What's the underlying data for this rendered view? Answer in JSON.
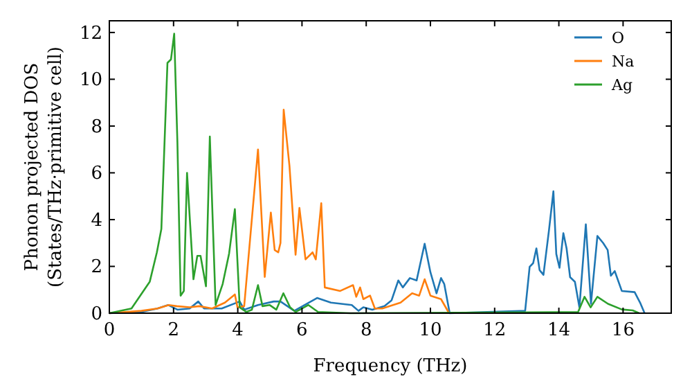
{
  "chart_data": {
    "type": "line",
    "xlabel": "Frequency (THz)",
    "ylabel": "Phonon projected DOS\n(States/THz·primitive cell)",
    "xlim": [
      0,
      17.5
    ],
    "ylim": [
      0,
      12.5
    ],
    "xticks": [
      0,
      2,
      4,
      6,
      8,
      10,
      12,
      14,
      16
    ],
    "yticks": [
      0,
      2,
      4,
      6,
      8,
      10,
      12
    ],
    "grid": false,
    "legend": "top right",
    "line_style": "solid",
    "series": [
      {
        "name": "O",
        "color": "#1f77b4",
        "x": [
          0,
          1,
          1.5,
          1.83,
          2.12,
          2.5,
          2.77,
          2.95,
          3.5,
          4.06,
          4.2,
          4.63,
          5.12,
          5.33,
          5.76,
          6.47,
          6.9,
          7.55,
          7.76,
          7.91,
          8.19,
          8.57,
          8.79,
          9.0,
          9.14,
          9.36,
          9.57,
          9.82,
          10.0,
          10.19,
          10.33,
          10.43,
          10.6,
          12.95,
          13.09,
          13.2,
          13.3,
          13.4,
          13.52,
          13.69,
          13.83,
          13.92,
          14.02,
          14.14,
          14.24,
          14.35,
          14.5,
          14.64,
          14.84,
          15.0,
          15.2,
          15.38,
          15.52,
          15.62,
          15.74,
          15.96,
          16.36,
          16.53,
          16.67
        ],
        "values": [
          0,
          0.05,
          0.2,
          0.35,
          0.15,
          0.2,
          0.5,
          0.2,
          0.2,
          0.5,
          0.15,
          0.35,
          0.5,
          0.5,
          0.1,
          0.65,
          0.45,
          0.35,
          0.1,
          0.25,
          0.15,
          0.3,
          0.55,
          1.4,
          1.1,
          1.5,
          1.4,
          2.97,
          1.75,
          0.85,
          1.5,
          1.25,
          0,
          0.1,
          1.98,
          2.14,
          2.77,
          1.84,
          1.64,
          3.52,
          5.21,
          2.53,
          1.94,
          3.42,
          2.77,
          1.54,
          1.34,
          0.25,
          3.8,
          0.4,
          3.3,
          3.0,
          2.7,
          1.6,
          1.8,
          0.95,
          0.9,
          0.45,
          0
        ]
      },
      {
        "name": "Na",
        "color": "#ff7f0e",
        "x": [
          0,
          1,
          1.5,
          1.85,
          2.1,
          2.5,
          2.8,
          3.2,
          3.6,
          3.91,
          3.99,
          4.2,
          4.63,
          4.84,
          5.03,
          5.15,
          5.26,
          5.33,
          5.43,
          5.61,
          5.8,
          5.92,
          6.11,
          6.33,
          6.43,
          6.6,
          6.71,
          7.19,
          7.59,
          7.69,
          7.81,
          7.91,
          8.12,
          8.27,
          8.5,
          9.07,
          9.43,
          9.65,
          9.82,
          10.0,
          10.33,
          10.58
        ],
        "values": [
          0,
          0.1,
          0.2,
          0.35,
          0.3,
          0.25,
          0.3,
          0.2,
          0.45,
          0.8,
          0.25,
          0.3,
          7.0,
          1.55,
          4.3,
          2.7,
          2.6,
          3.0,
          8.7,
          6.3,
          2.5,
          4.5,
          2.3,
          2.6,
          2.3,
          4.7,
          1.1,
          0.95,
          1.2,
          0.7,
          1.1,
          0.6,
          0.75,
          0.2,
          0.2,
          0.45,
          0.85,
          0.75,
          1.45,
          0.75,
          0.6,
          0
        ]
      },
      {
        "name": "Ag",
        "color": "#2ca02c",
        "x": [
          0,
          0.69,
          1.26,
          1.48,
          1.62,
          1.81,
          1.92,
          2.02,
          2.12,
          2.22,
          2.32,
          2.42,
          2.62,
          2.74,
          2.84,
          3.01,
          3.13,
          3.31,
          3.53,
          3.73,
          3.91,
          4.06,
          4.27,
          4.44,
          4.63,
          4.77,
          4.99,
          5.2,
          5.42,
          5.63,
          5.8,
          6.2,
          6.5,
          7.5,
          14.6,
          14.8,
          14.99,
          15.2,
          15.53,
          15.96,
          16.3,
          16.5
        ],
        "values": [
          0,
          0.2,
          1.35,
          2.6,
          3.6,
          10.7,
          10.85,
          11.95,
          7.3,
          0.75,
          0.95,
          6.0,
          1.45,
          2.45,
          2.45,
          1.15,
          7.55,
          0.35,
          1.25,
          2.55,
          4.45,
          0.25,
          0.05,
          0.15,
          1.2,
          0.3,
          0.35,
          0.15,
          0.85,
          0.25,
          0.05,
          0.35,
          0.05,
          0,
          0.05,
          0.7,
          0.25,
          0.7,
          0.4,
          0.16,
          0.12,
          0
        ]
      }
    ]
  }
}
